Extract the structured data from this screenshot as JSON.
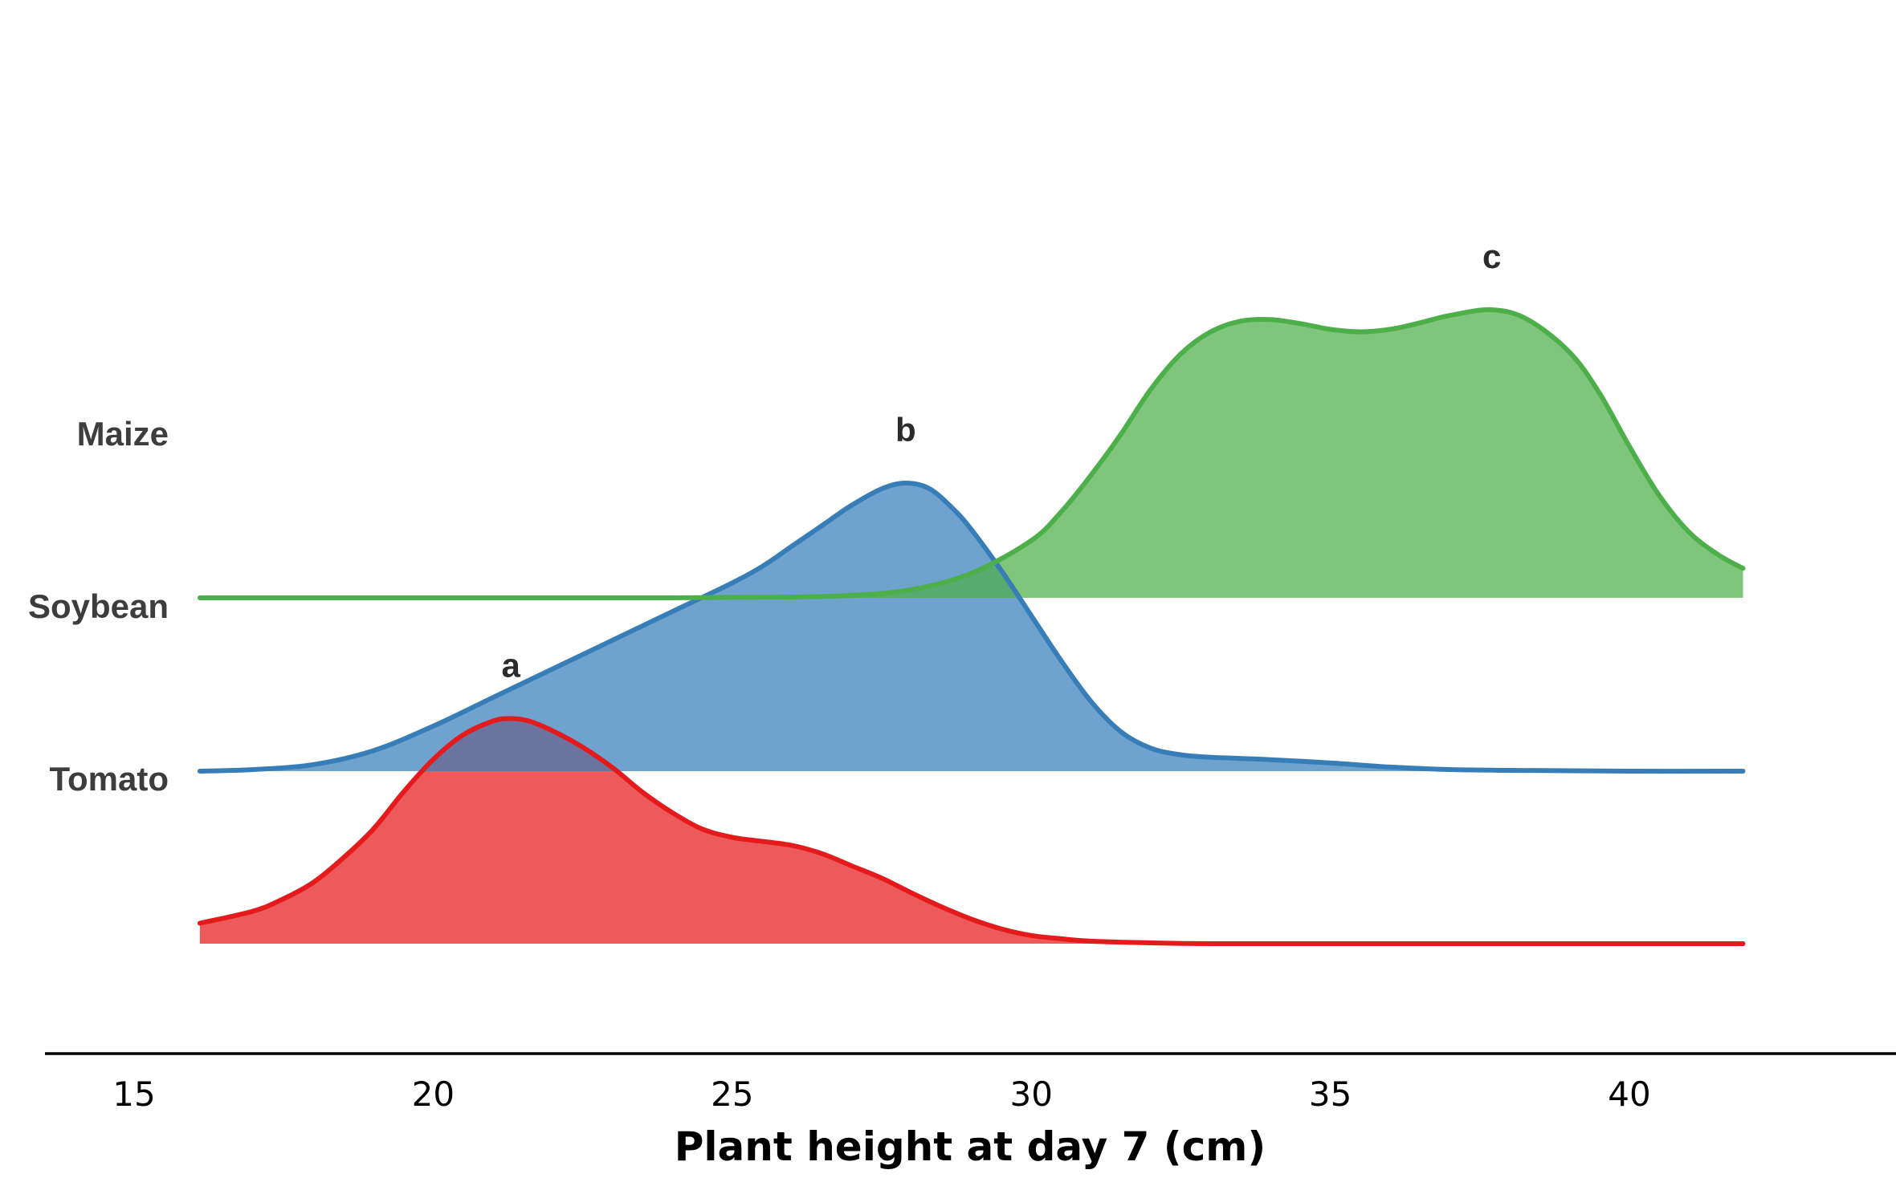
{
  "chart_data": {
    "type": "ridgeline",
    "title": "",
    "xlabel": "Plant height at day 7 (cm)",
    "ylabel": "",
    "xlim": [
      13,
      44
    ],
    "x_ticks": [
      "15",
      "20",
      "25",
      "30",
      "35",
      "40"
    ],
    "x_tick_values": [
      15,
      20,
      25,
      30,
      35,
      40
    ],
    "grid": false,
    "legend": "none",
    "categories": [
      "Maize",
      "Soybean",
      "Tomato"
    ],
    "series": [
      {
        "name": "Tomato",
        "color": "#e41a1c",
        "fill": "#f08080",
        "peak_label": "a",
        "peak_x": 21.3,
        "density": {
          "x": [
            16.1,
            17.0,
            17.5,
            18.0,
            18.5,
            19.0,
            19.5,
            20.0,
            20.5,
            21.0,
            21.3,
            21.6,
            22.0,
            22.5,
            23.0,
            23.5,
            24.0,
            24.5,
            25.0,
            25.5,
            26.0,
            26.5,
            27.0,
            27.5,
            28.0,
            28.5,
            29.0,
            29.5,
            30.0,
            30.5,
            31.0,
            32.0,
            33.0,
            35.0,
            38.0,
            41.9
          ],
          "y": [
            0.25,
            0.4,
            0.55,
            0.75,
            1.05,
            1.4,
            1.85,
            2.25,
            2.55,
            2.72,
            2.75,
            2.72,
            2.6,
            2.4,
            2.15,
            1.85,
            1.6,
            1.4,
            1.3,
            1.25,
            1.2,
            1.1,
            0.95,
            0.8,
            0.62,
            0.45,
            0.3,
            0.18,
            0.1,
            0.06,
            0.03,
            0.01,
            0.0,
            0.0,
            0.0,
            0.0
          ]
        }
      },
      {
        "name": "Soybean",
        "color": "#377eb8",
        "fill": "#91b7da",
        "peak_label": "b",
        "peak_x": 27.9,
        "density": {
          "x": [
            16.1,
            17.0,
            18.0,
            19.0,
            20.0,
            21.0,
            22.0,
            23.0,
            24.0,
            25.0,
            25.5,
            26.0,
            26.5,
            27.0,
            27.5,
            27.9,
            28.3,
            28.7,
            29.0,
            29.5,
            30.0,
            30.5,
            31.0,
            31.5,
            32.0,
            32.5,
            33.0,
            34.0,
            35.0,
            36.0,
            37.0,
            38.0,
            40.0,
            41.9
          ],
          "y": [
            0.0,
            0.02,
            0.08,
            0.25,
            0.55,
            0.9,
            1.25,
            1.6,
            1.95,
            2.3,
            2.5,
            2.75,
            3.0,
            3.25,
            3.45,
            3.52,
            3.45,
            3.2,
            2.95,
            2.45,
            1.9,
            1.35,
            0.85,
            0.48,
            0.28,
            0.2,
            0.17,
            0.14,
            0.1,
            0.05,
            0.02,
            0.01,
            0.0,
            0.0
          ]
        }
      },
      {
        "name": "Maize",
        "color": "#4daf4a",
        "fill": "#9bd29a",
        "peak_label": "c",
        "peak_x": 37.7,
        "density": {
          "x": [
            16.1,
            20.0,
            24.0,
            26.0,
            27.0,
            28.0,
            29.0,
            30.0,
            30.5,
            31.0,
            31.5,
            32.0,
            32.5,
            33.0,
            33.5,
            34.0,
            34.5,
            35.0,
            35.5,
            36.0,
            36.5,
            37.0,
            37.7,
            38.3,
            39.0,
            39.5,
            40.0,
            40.5,
            41.0,
            41.5,
            41.9
          ],
          "y": [
            0.0,
            0.0,
            0.0,
            0.01,
            0.03,
            0.1,
            0.3,
            0.7,
            1.05,
            1.5,
            2.0,
            2.55,
            2.98,
            3.25,
            3.38,
            3.4,
            3.35,
            3.28,
            3.25,
            3.28,
            3.36,
            3.45,
            3.52,
            3.4,
            3.0,
            2.5,
            1.85,
            1.25,
            0.8,
            0.52,
            0.36
          ]
        }
      }
    ]
  }
}
